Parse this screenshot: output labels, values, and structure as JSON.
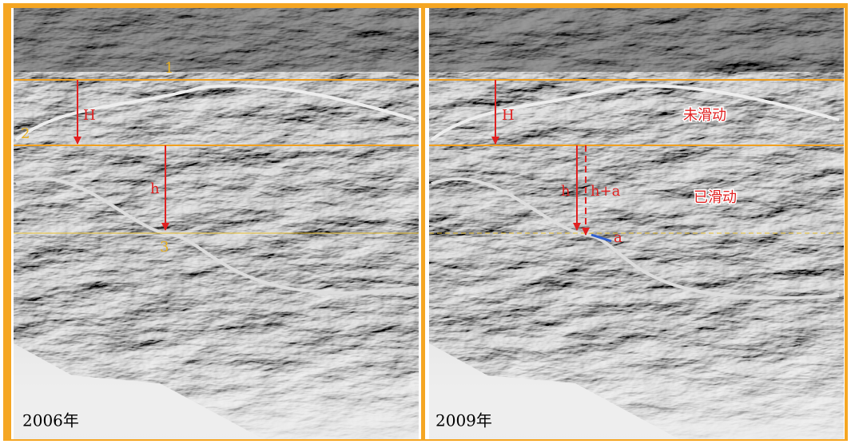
{
  "panels": [
    {
      "year": "2006年",
      "line_1": "1",
      "line_2": "2",
      "line_3": "3",
      "H": "H",
      "h": "h"
    },
    {
      "year": "2009年",
      "H": "H",
      "h": "h",
      "h_plus_a": "h+a",
      "a": "a",
      "stable": "未滑动",
      "slid": "已滑动"
    }
  ]
}
